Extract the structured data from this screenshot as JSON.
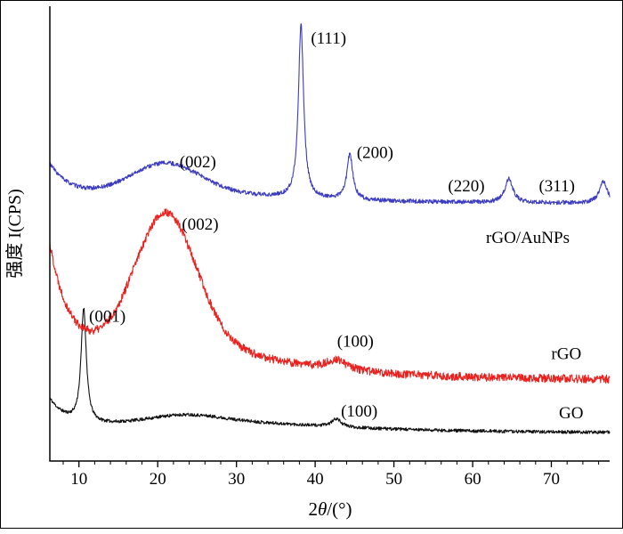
{
  "figure": {
    "background": "#ffffff",
    "frame_color": "#000000",
    "axis_color": "#000000"
  },
  "chart_data": {
    "type": "line",
    "title": "",
    "xlabel": "2θ/(°)",
    "ylabel": "强度 I(CPS)",
    "xlim": [
      6.3,
      77.4
    ],
    "xticks": [
      10,
      20,
      30,
      40,
      50,
      60,
      70
    ],
    "minor_tick_step": 2,
    "grid": false,
    "legend_position": "inline-right",
    "series": [
      {
        "name": "GO",
        "color": "#111111",
        "label_x": 72.5,
        "label_y": 0.094,
        "baseline": 0.06,
        "noise": 0.0035,
        "seed": 11,
        "components": [
          {
            "type": "edge_decay",
            "height": 0.062,
            "tau": 2.2
          },
          {
            "type": "lorentzian",
            "center": 10.6,
            "height": 0.25,
            "width": 0.4,
            "peak_label": "(001)"
          },
          {
            "type": "gaussian",
            "center": 23.5,
            "height": 0.012,
            "width": 4.0
          },
          {
            "type": "lorentzian",
            "center": 25.0,
            "height": 0.03,
            "width": 18.0
          },
          {
            "type": "lorentzian",
            "center": 42.7,
            "height": 0.018,
            "width": 0.7,
            "peak_label": "(100)"
          }
        ]
      },
      {
        "name": "rGO",
        "color": "#e8231f",
        "label_x": 71.9,
        "label_y": 0.224,
        "baseline": 0.175,
        "noise": 0.009,
        "seed": 22,
        "components": [
          {
            "type": "edge_decay",
            "height": 0.26,
            "tau": 2.6
          },
          {
            "type": "gaussian",
            "center": 21.0,
            "height": 0.27,
            "width": 3.8,
            "peak_label": "(002)"
          },
          {
            "type": "lorentzian",
            "center": 21.0,
            "height": 0.1,
            "width": 13.0
          },
          {
            "type": "lorentzian",
            "center": 42.7,
            "height": 0.022,
            "width": 1.5,
            "peak_label": "(100)"
          }
        ]
      },
      {
        "name": "rGO/AuNPs",
        "color": "#3c3cc0",
        "label_x": 67.0,
        "label_y": 0.479,
        "baseline": 0.565,
        "noise": 0.0045,
        "seed": 33,
        "components": [
          {
            "type": "edge_decay",
            "height": 0.075,
            "tau": 2.5
          },
          {
            "type": "gaussian",
            "center": 21.0,
            "height": 0.06,
            "width": 4.2,
            "peak_label": "(002)"
          },
          {
            "type": "lorentzian",
            "center": 21.0,
            "height": 0.03,
            "width": 15.0
          },
          {
            "type": "lorentzian",
            "center": 38.2,
            "height": 0.38,
            "width": 0.4,
            "peak_label": "(111)"
          },
          {
            "type": "lorentzian",
            "center": 44.4,
            "height": 0.1,
            "width": 0.45,
            "peak_label": "(200)"
          },
          {
            "type": "lorentzian",
            "center": 64.6,
            "height": 0.052,
            "width": 0.6,
            "peak_label": "(220)"
          },
          {
            "type": "lorentzian",
            "center": 76.6,
            "height": 0.048,
            "width": 0.6,
            "peak_label": "(311)"
          }
        ]
      }
    ],
    "annotations": [
      {
        "text": "(001)",
        "x": 13.6,
        "y": 0.306,
        "series": "GO"
      },
      {
        "text": "(100)",
        "x": 45.6,
        "y": 0.098,
        "series": "GO"
      },
      {
        "text": "(002)",
        "x": 25.4,
        "y": 0.509,
        "series": "rGO"
      },
      {
        "text": "(100)",
        "x": 45.1,
        "y": 0.251,
        "series": "rGO"
      },
      {
        "text": "(002)",
        "x": 25.1,
        "y": 0.646,
        "series": "rGO/AuNPs"
      },
      {
        "text": "(111)",
        "x": 41.7,
        "y": 0.918,
        "series": "rGO/AuNPs"
      },
      {
        "text": "(200)",
        "x": 47.6,
        "y": 0.666,
        "series": "rGO/AuNPs"
      },
      {
        "text": "(220)",
        "x": 59.2,
        "y": 0.593,
        "series": "rGO/AuNPs"
      },
      {
        "text": "(311)",
        "x": 70.7,
        "y": 0.593,
        "series": "rGO/AuNPs"
      }
    ]
  }
}
